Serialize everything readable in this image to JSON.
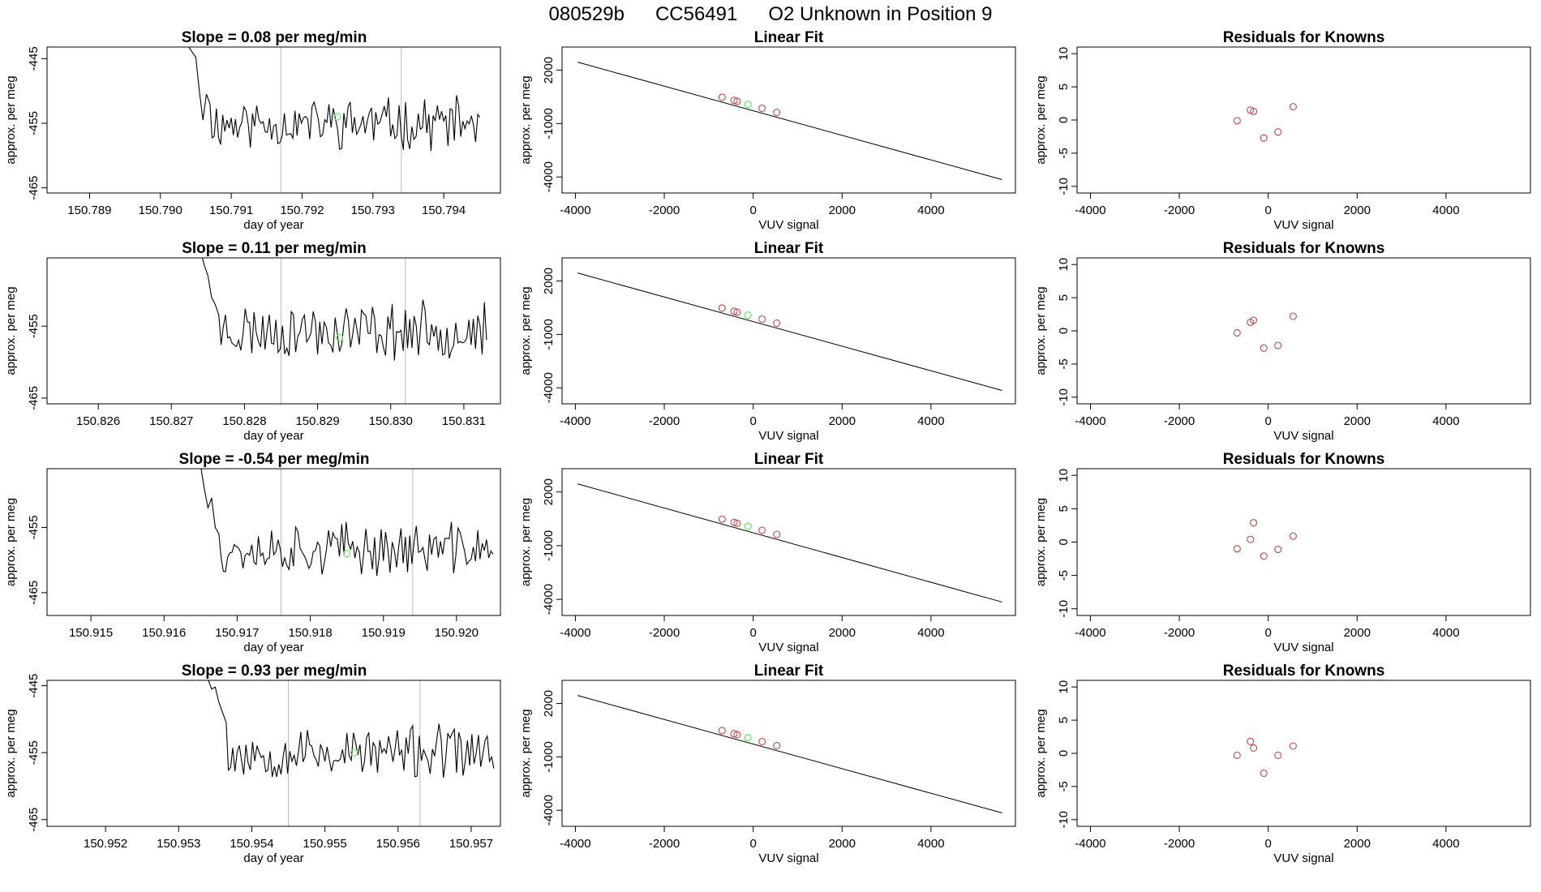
{
  "title": {
    "run": "080529b",
    "cylinder": "CC56491",
    "description": "O2 Unknown in Position  9"
  },
  "colors": {
    "series_line": "#000000",
    "unknown_point": "#66ee66",
    "known_point": "#cc4444",
    "marker_line": "#bbbbbb",
    "frame": "#000000"
  },
  "chart_data": [
    {
      "type": "line",
      "panel": "time-series",
      "slope_label": "Slope = ",
      "slope_value": "0.08",
      "slope_units": "per meg/min",
      "xlabel": "day of year",
      "ylabel": "approx. per meg",
      "xlim": [
        150.7884,
        150.7948
      ],
      "ylim": [
        -465.8,
        -443.2
      ],
      "x_ticks": [
        "150.789",
        "150.790",
        "150.791",
        "150.792",
        "150.793",
        "150.794"
      ],
      "y_ticks": [
        "-445",
        "-455",
        "-465"
      ],
      "markers_x": [
        150.7917,
        150.7934
      ],
      "unknown_point": {
        "x": 150.7925,
        "y": -454.0
      },
      "series_start": 150.7904,
      "series_end": 150.7945,
      "series_mean": -455.0,
      "seed": 11,
      "series_head": [
        [
          150.7904,
          -443.2
        ],
        [
          150.7905,
          -444.8
        ],
        [
          150.79055,
          -450
        ],
        [
          150.7906,
          -454.5
        ],
        [
          150.79065,
          -450.5
        ],
        [
          150.7907,
          -452
        ]
      ]
    },
    {
      "type": "line",
      "panel": "linear-fit",
      "title": "Linear Fit",
      "xlabel": "VUV signal",
      "ylabel": "approx. per meg",
      "xlim": [
        -4300,
        5900
      ],
      "ylim": [
        -4900,
        3300
      ],
      "x_ticks": [
        "-4000",
        "-2000",
        "0",
        "2000",
        "4000"
      ],
      "y_ticks": [
        "2000",
        "-1000",
        "-4000"
      ],
      "fit_line": {
        "x": [
          -3950,
          5600
        ],
        "y": [
          2450,
          -4150
        ]
      },
      "knowns": [
        {
          "x": -700,
          "y": 480
        },
        {
          "x": -430,
          "y": 300
        },
        {
          "x": -360,
          "y": 250
        },
        {
          "x": 200,
          "y": -140
        },
        {
          "x": 530,
          "y": -370
        }
      ],
      "unknown": {
        "x": -120,
        "y": 80
      }
    },
    {
      "type": "scatter",
      "panel": "residuals",
      "title": "Residuals for Knowns",
      "xlabel": "VUV signal",
      "ylabel": "approx. per meg",
      "xlim": [
        -4300,
        5900
      ],
      "ylim": [
        -11,
        11
      ],
      "x_ticks": [
        "-4000",
        "-2000",
        "0",
        "2000",
        "4000"
      ],
      "y_ticks": [
        "10",
        "5",
        "0",
        "-5",
        "-10"
      ],
      "points": [
        {
          "x": -700,
          "y": -0.1
        },
        {
          "x": -400,
          "y": 1.5
        },
        {
          "x": -330,
          "y": 1.3
        },
        {
          "x": -100,
          "y": -2.7
        },
        {
          "x": 220,
          "y": -1.8
        },
        {
          "x": 560,
          "y": 2.0
        }
      ]
    },
    {
      "type": "line",
      "panel": "time-series",
      "slope_label": "Slope = ",
      "slope_value": "0.11",
      "slope_units": "per meg/min",
      "xlabel": "day of year",
      "ylabel": "approx. per meg",
      "xlim": [
        150.8253,
        150.8315
      ],
      "ylim": [
        -465.8,
        -445.5
      ],
      "x_ticks": [
        "150.826",
        "150.827",
        "150.828",
        "150.829",
        "150.830",
        "150.831"
      ],
      "y_ticks": [
        "-455",
        "-465"
      ],
      "markers_x": [
        150.8285,
        150.8302
      ],
      "unknown_point": {
        "x": 150.8293,
        "y": -456.6
      },
      "series_start": 150.8274,
      "series_end": 150.8313,
      "series_mean": -455.6,
      "seed": 23,
      "series_head": [
        [
          150.8274,
          -444.5
        ],
        [
          150.82745,
          -446.5
        ],
        [
          150.8275,
          -448
        ],
        [
          150.82755,
          -451
        ],
        [
          150.8276,
          -452
        ],
        [
          150.82765,
          -453.5
        ]
      ]
    },
    {
      "type": "line",
      "panel": "linear-fit",
      "title": "Linear Fit",
      "xlabel": "VUV signal",
      "ylabel": "approx. per meg",
      "xlim": [
        -4300,
        5900
      ],
      "ylim": [
        -4900,
        3300
      ],
      "x_ticks": [
        "-4000",
        "-2000",
        "0",
        "2000",
        "4000"
      ],
      "y_ticks": [
        "2000",
        "-1000",
        "-4000"
      ],
      "fit_line": {
        "x": [
          -3950,
          5600
        ],
        "y": [
          2450,
          -4150
        ]
      },
      "knowns": [
        {
          "x": -700,
          "y": 480
        },
        {
          "x": -430,
          "y": 300
        },
        {
          "x": -360,
          "y": 250
        },
        {
          "x": 200,
          "y": -140
        },
        {
          "x": 530,
          "y": -370
        }
      ],
      "unknown": {
        "x": -120,
        "y": 80
      }
    },
    {
      "type": "scatter",
      "panel": "residuals",
      "title": "Residuals for Knowns",
      "xlabel": "VUV signal",
      "ylabel": "approx. per meg",
      "xlim": [
        -4300,
        5900
      ],
      "ylim": [
        -11,
        11
      ],
      "x_ticks": [
        "-4000",
        "-2000",
        "0",
        "2000",
        "4000"
      ],
      "y_ticks": [
        "10",
        "5",
        "0",
        "-5",
        "-10"
      ],
      "points": [
        {
          "x": -700,
          "y": -0.3
        },
        {
          "x": -400,
          "y": 1.3
        },
        {
          "x": -330,
          "y": 1.6
        },
        {
          "x": -100,
          "y": -2.6
        },
        {
          "x": 220,
          "y": -2.2
        },
        {
          "x": 560,
          "y": 2.2
        }
      ]
    },
    {
      "type": "line",
      "panel": "time-series",
      "slope_label": "Slope = ",
      "slope_value": "-0.54",
      "slope_units": "per meg/min",
      "xlabel": "day of year",
      "ylabel": "approx. per meg",
      "xlim": [
        150.9144,
        150.9206
      ],
      "ylim": [
        -468.5,
        -446.0
      ],
      "x_ticks": [
        "150.915",
        "150.916",
        "150.917",
        "150.918",
        "150.919",
        "150.920"
      ],
      "y_ticks": [
        "-455",
        "-465"
      ],
      "markers_x": [
        150.9176,
        150.9194
      ],
      "unknown_point": {
        "x": 150.9185,
        "y": -459.0
      },
      "series_start": 150.9165,
      "series_end": 150.9205,
      "series_mean": -458.3,
      "seed": 37,
      "series_head": [
        [
          150.9165,
          -445.5
        ],
        [
          150.91655,
          -449
        ],
        [
          150.9166,
          -452
        ],
        [
          150.91665,
          -450.5
        ],
        [
          150.9167,
          -455
        ],
        [
          150.91675,
          -456
        ]
      ]
    },
    {
      "type": "line",
      "panel": "linear-fit",
      "title": "Linear Fit",
      "xlabel": "VUV signal",
      "ylabel": "approx. per meg",
      "xlim": [
        -4300,
        5900
      ],
      "ylim": [
        -4900,
        3300
      ],
      "x_ticks": [
        "-4000",
        "-2000",
        "0",
        "2000",
        "4000"
      ],
      "y_ticks": [
        "2000",
        "-1000",
        "-4000"
      ],
      "fit_line": {
        "x": [
          -3950,
          5600
        ],
        "y": [
          2450,
          -4150
        ]
      },
      "knowns": [
        {
          "x": -700,
          "y": 480
        },
        {
          "x": -430,
          "y": 300
        },
        {
          "x": -360,
          "y": 250
        },
        {
          "x": 200,
          "y": -140
        },
        {
          "x": 530,
          "y": -370
        }
      ],
      "unknown": {
        "x": -120,
        "y": 80
      }
    },
    {
      "type": "scatter",
      "panel": "residuals",
      "title": "Residuals for Knowns",
      "xlabel": "VUV signal",
      "ylabel": "approx. per meg",
      "xlim": [
        -4300,
        5900
      ],
      "ylim": [
        -11,
        11
      ],
      "x_ticks": [
        "-4000",
        "-2000",
        "0",
        "2000",
        "4000"
      ],
      "y_ticks": [
        "10",
        "5",
        "0",
        "-5",
        "-10"
      ],
      "points": [
        {
          "x": -700,
          "y": -1.0
        },
        {
          "x": -400,
          "y": 0.4
        },
        {
          "x": -330,
          "y": 2.9
        },
        {
          "x": -100,
          "y": -2.1
        },
        {
          "x": 220,
          "y": -1.1
        },
        {
          "x": 560,
          "y": 0.9
        }
      ]
    },
    {
      "type": "line",
      "panel": "time-series",
      "slope_label": "Slope = ",
      "slope_value": "0.93",
      "slope_units": "per meg/min",
      "xlabel": "day of year",
      "ylabel": "approx. per meg",
      "xlim": [
        150.9512,
        150.9574
      ],
      "ylim": [
        -466.0,
        -444.2
      ],
      "x_ticks": [
        "150.952",
        "150.953",
        "150.954",
        "150.955",
        "150.956",
        "150.957"
      ],
      "y_ticks": [
        "-445",
        "-455",
        "-465"
      ],
      "markers_x": [
        150.9545,
        150.9563
      ],
      "unknown_point": {
        "x": 150.9554,
        "y": -455.0
      },
      "series_start": 150.9534,
      "series_end": 150.9573,
      "series_mean": -455.0,
      "seed": 53,
      "series_head": [
        [
          150.9534,
          -444.0
        ],
        [
          150.95345,
          -445.5
        ],
        [
          150.9535,
          -445.2
        ],
        [
          150.95355,
          -447.5
        ],
        [
          150.9536,
          -449
        ],
        [
          150.95365,
          -450.5
        ]
      ]
    },
    {
      "type": "line",
      "panel": "linear-fit",
      "title": "Linear Fit",
      "xlabel": "VUV signal",
      "ylabel": "approx. per meg",
      "xlim": [
        -4300,
        5900
      ],
      "ylim": [
        -4900,
        3300
      ],
      "x_ticks": [
        "-4000",
        "-2000",
        "0",
        "2000",
        "4000"
      ],
      "y_ticks": [
        "2000",
        "-1000",
        "-4000"
      ],
      "fit_line": {
        "x": [
          -3950,
          5600
        ],
        "y": [
          2450,
          -4150
        ]
      },
      "knowns": [
        {
          "x": -700,
          "y": 480
        },
        {
          "x": -430,
          "y": 300
        },
        {
          "x": -360,
          "y": 250
        },
        {
          "x": 200,
          "y": -140
        },
        {
          "x": 530,
          "y": -370
        }
      ],
      "unknown": {
        "x": -120,
        "y": 80
      }
    },
    {
      "type": "scatter",
      "panel": "residuals",
      "title": "Residuals for Knowns",
      "xlabel": "VUV signal",
      "ylabel": "approx. per meg",
      "xlim": [
        -4300,
        5900
      ],
      "ylim": [
        -11,
        11
      ],
      "x_ticks": [
        "-4000",
        "-2000",
        "0",
        "2000",
        "4000"
      ],
      "y_ticks": [
        "10",
        "5",
        "0",
        "-5",
        "-10"
      ],
      "points": [
        {
          "x": -700,
          "y": -0.3
        },
        {
          "x": -400,
          "y": 1.8
        },
        {
          "x": -330,
          "y": 0.8
        },
        {
          "x": -100,
          "y": -3.0
        },
        {
          "x": 220,
          "y": -0.3
        },
        {
          "x": 560,
          "y": 1.1
        }
      ]
    }
  ]
}
